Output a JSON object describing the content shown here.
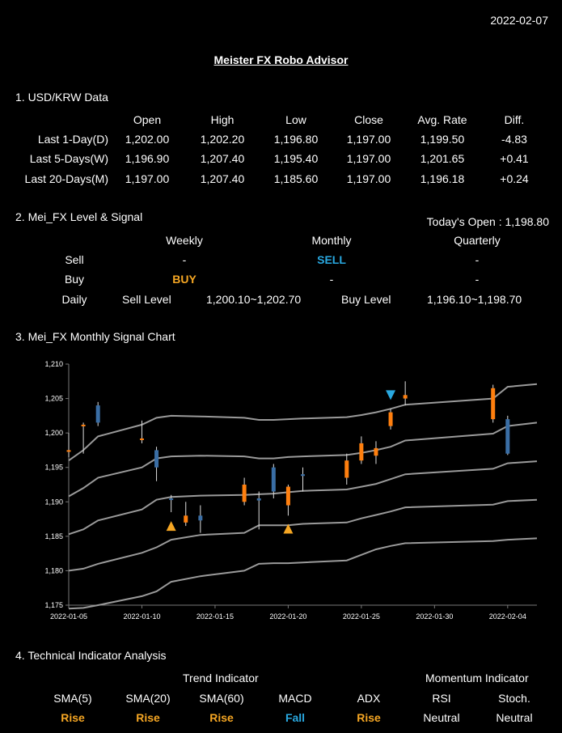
{
  "date": "2022-02-07",
  "title": "Meister FX Robo Advisor",
  "section1": {
    "title": "1. USD/KRW Data",
    "columns": [
      "Open",
      "High",
      "Low",
      "Close",
      "Avg. Rate",
      "Diff."
    ],
    "rows": [
      {
        "label": "Last 1-Day(D)",
        "values": [
          "1,202.00",
          "1,202.20",
          "1,196.80",
          "1,197.00",
          "1,199.50",
          "-4.83"
        ]
      },
      {
        "label": "Last 5-Days(W)",
        "values": [
          "1,196.90",
          "1,207.40",
          "1,195.40",
          "1,197.00",
          "1,201.65",
          "+0.41"
        ]
      },
      {
        "label": "Last 20-Days(M)",
        "values": [
          "1,197.00",
          "1,207.40",
          "1,185.60",
          "1,197.00",
          "1,196.18",
          "+0.24"
        ]
      }
    ]
  },
  "section2": {
    "title": "2. Mei_FX Level & Signal",
    "todays_open": "Today's Open : 1,198.80",
    "headers": [
      "Weekly",
      "Monthly",
      "Quarterly"
    ],
    "sell_label": "Sell",
    "buy_label": "Buy",
    "daily_label": "Daily",
    "sell": [
      "-",
      "SELL",
      "-"
    ],
    "buy": [
      "BUY",
      "-",
      "-"
    ],
    "sell_level_label": "Sell Level",
    "sell_level": "1,200.10~1,202.70",
    "buy_level_label": "Buy Level",
    "buy_level": "1,196.10~1,198.70"
  },
  "section3": {
    "title": "3. Mei_FX Monthly Signal Chart"
  },
  "chart_data": {
    "type": "candlestick",
    "ylim": [
      1175,
      1210
    ],
    "yticks": [
      1175,
      1180,
      1185,
      1190,
      1195,
      1200,
      1205,
      1210
    ],
    "ytick_labels": [
      "1,175",
      "1,180",
      "1,185",
      "1,190",
      "1,195",
      "1,200",
      "1,205",
      "1,210"
    ],
    "xlim": [
      "2022-01-05",
      "2022-02-06"
    ],
    "xticks": [
      "2022-01-05",
      "2022-01-10",
      "2022-01-15",
      "2022-01-20",
      "2022-01-25",
      "2022-01-30",
      "2022-02-04"
    ],
    "up_color": "#ff7f0e",
    "down_color": "#3a6ea5",
    "line_color": "#9a9a9a",
    "candles": [
      {
        "date": "2022-01-05",
        "open": 1197.5,
        "high": 1200.0,
        "low": 1196.5,
        "close": 1197.5
      },
      {
        "date": "2022-01-06",
        "open": 1201.0,
        "high": 1201.5,
        "low": 1197.0,
        "close": 1201.2
      },
      {
        "date": "2022-01-07",
        "open": 1204.0,
        "high": 1204.5,
        "low": 1201.0,
        "close": 1201.5
      },
      {
        "date": "2022-01-10",
        "open": 1199.0,
        "high": 1201.8,
        "low": 1198.5,
        "close": 1199.2
      },
      {
        "date": "2022-01-11",
        "open": 1197.5,
        "high": 1198.0,
        "low": 1193.0,
        "close": 1195.0
      },
      {
        "date": "2022-01-12",
        "open": 1190.5,
        "high": 1191.0,
        "low": 1188.5,
        "close": 1190.3
      },
      {
        "date": "2022-01-13",
        "open": 1187.0,
        "high": 1190.0,
        "low": 1186.5,
        "close": 1188.0
      },
      {
        "date": "2022-01-14",
        "open": 1188.0,
        "high": 1189.5,
        "low": 1185.5,
        "close": 1187.3
      },
      {
        "date": "2022-01-17",
        "open": 1190.0,
        "high": 1193.5,
        "low": 1189.5,
        "close": 1192.5
      },
      {
        "date": "2022-01-18",
        "open": 1190.5,
        "high": 1191.5,
        "low": 1186.0,
        "close": 1190.2
      },
      {
        "date": "2022-01-19",
        "open": 1195.0,
        "high": 1195.5,
        "low": 1190.5,
        "close": 1191.5
      },
      {
        "date": "2022-01-20",
        "open": 1189.5,
        "high": 1192.5,
        "low": 1188.0,
        "close": 1192.2
      },
      {
        "date": "2022-01-21",
        "open": 1194.0,
        "high": 1195.0,
        "low": 1191.5,
        "close": 1193.8
      },
      {
        "date": "2022-01-24",
        "open": 1193.5,
        "high": 1197.0,
        "low": 1192.5,
        "close": 1196.0
      },
      {
        "date": "2022-01-25",
        "open": 1196.0,
        "high": 1199.5,
        "low": 1195.5,
        "close": 1198.5
      },
      {
        "date": "2022-01-26",
        "open": 1196.7,
        "high": 1198.8,
        "low": 1195.5,
        "close": 1197.8
      },
      {
        "date": "2022-01-27",
        "open": 1201.0,
        "high": 1203.5,
        "low": 1200.5,
        "close": 1203.0
      },
      {
        "date": "2022-01-28",
        "open": 1205.0,
        "high": 1207.5,
        "low": 1204.0,
        "close": 1205.5
      },
      {
        "date": "2022-02-03",
        "open": 1202.0,
        "high": 1207.0,
        "low": 1201.5,
        "close": 1206.5
      },
      {
        "date": "2022-02-04",
        "open": 1202.0,
        "high": 1202.5,
        "low": 1196.8,
        "close": 1197.0
      }
    ],
    "bands": [
      [
        [
          "2022-01-05",
          1196.0
        ],
        [
          "2022-01-06",
          1197.5
        ],
        [
          "2022-01-07",
          1199.5
        ],
        [
          "2022-01-10",
          1201.2
        ],
        [
          "2022-01-11",
          1202.2
        ],
        [
          "2022-01-12",
          1202.5
        ],
        [
          "2022-01-14",
          1202.4
        ],
        [
          "2022-01-17",
          1202.2
        ],
        [
          "2022-01-18",
          1201.9
        ],
        [
          "2022-01-19",
          1201.9
        ],
        [
          "2022-01-20",
          1202.0
        ],
        [
          "2022-01-21",
          1202.1
        ],
        [
          "2022-01-24",
          1202.3
        ],
        [
          "2022-01-25",
          1202.6
        ],
        [
          "2022-01-26",
          1203.0
        ],
        [
          "2022-01-27",
          1203.5
        ],
        [
          "2022-01-28",
          1204.1
        ],
        [
          "2022-02-03",
          1205.0
        ],
        [
          "2022-02-04",
          1206.7
        ],
        [
          "2022-02-06",
          1207.1
        ]
      ],
      [
        [
          "2022-01-05",
          1190.8
        ],
        [
          "2022-01-06",
          1192.0
        ],
        [
          "2022-01-07",
          1193.5
        ],
        [
          "2022-01-10",
          1195.0
        ],
        [
          "2022-01-11",
          1196.3
        ],
        [
          "2022-01-12",
          1196.6
        ],
        [
          "2022-01-14",
          1196.7
        ],
        [
          "2022-01-17",
          1196.6
        ],
        [
          "2022-01-18",
          1196.3
        ],
        [
          "2022-01-19",
          1196.3
        ],
        [
          "2022-01-20",
          1196.5
        ],
        [
          "2022-01-21",
          1196.6
        ],
        [
          "2022-01-24",
          1196.8
        ],
        [
          "2022-01-25",
          1197.1
        ],
        [
          "2022-01-26",
          1197.5
        ],
        [
          "2022-01-27",
          1198.0
        ],
        [
          "2022-01-28",
          1198.9
        ],
        [
          "2022-02-03",
          1199.9
        ],
        [
          "2022-02-04",
          1201.0
        ],
        [
          "2022-02-06",
          1201.5
        ]
      ],
      [
        [
          "2022-01-05",
          1185.3
        ],
        [
          "2022-01-06",
          1186.0
        ],
        [
          "2022-01-07",
          1187.3
        ],
        [
          "2022-01-10",
          1188.9
        ],
        [
          "2022-01-11",
          1190.3
        ],
        [
          "2022-01-12",
          1190.7
        ],
        [
          "2022-01-14",
          1190.9
        ],
        [
          "2022-01-17",
          1191.0
        ],
        [
          "2022-01-18",
          1191.1
        ],
        [
          "2022-01-19",
          1191.2
        ],
        [
          "2022-01-20",
          1191.4
        ],
        [
          "2022-01-21",
          1191.6
        ],
        [
          "2022-01-24",
          1191.8
        ],
        [
          "2022-01-25",
          1192.2
        ],
        [
          "2022-01-26",
          1192.6
        ],
        [
          "2022-01-27",
          1193.3
        ],
        [
          "2022-01-28",
          1194.0
        ],
        [
          "2022-02-03",
          1194.8
        ],
        [
          "2022-02-04",
          1195.6
        ],
        [
          "2022-02-06",
          1195.9
        ]
      ],
      [
        [
          "2022-01-05",
          1180.0
        ],
        [
          "2022-01-06",
          1180.3
        ],
        [
          "2022-01-07",
          1181.0
        ],
        [
          "2022-01-10",
          1182.6
        ],
        [
          "2022-01-11",
          1183.4
        ],
        [
          "2022-01-12",
          1184.5
        ],
        [
          "2022-01-14",
          1185.2
        ],
        [
          "2022-01-17",
          1185.5
        ],
        [
          "2022-01-18",
          1186.6
        ],
        [
          "2022-01-19",
          1186.6
        ],
        [
          "2022-01-20",
          1186.6
        ],
        [
          "2022-01-21",
          1186.8
        ],
        [
          "2022-01-24",
          1187.0
        ],
        [
          "2022-01-25",
          1187.6
        ],
        [
          "2022-01-26",
          1188.1
        ],
        [
          "2022-01-27",
          1188.6
        ],
        [
          "2022-01-28",
          1189.2
        ],
        [
          "2022-02-03",
          1189.6
        ],
        [
          "2022-02-04",
          1190.1
        ],
        [
          "2022-02-06",
          1190.3
        ]
      ],
      [
        [
          "2022-01-05",
          1174.5
        ],
        [
          "2022-01-06",
          1174.6
        ],
        [
          "2022-01-07",
          1175.0
        ],
        [
          "2022-01-10",
          1176.3
        ],
        [
          "2022-01-11",
          1177.0
        ],
        [
          "2022-01-12",
          1178.4
        ],
        [
          "2022-01-14",
          1179.2
        ],
        [
          "2022-01-17",
          1180.0
        ],
        [
          "2022-01-18",
          1181.0
        ],
        [
          "2022-01-19",
          1181.1
        ],
        [
          "2022-01-20",
          1181.1
        ],
        [
          "2022-01-21",
          1181.2
        ],
        [
          "2022-01-24",
          1181.5
        ],
        [
          "2022-01-25",
          1182.3
        ],
        [
          "2022-01-26",
          1183.1
        ],
        [
          "2022-01-27",
          1183.6
        ],
        [
          "2022-01-28",
          1184.0
        ],
        [
          "2022-02-03",
          1184.3
        ],
        [
          "2022-02-04",
          1184.5
        ],
        [
          "2022-02-06",
          1184.7
        ]
      ]
    ],
    "markers": [
      {
        "type": "buy",
        "date": "2022-01-12",
        "value": 1186.5,
        "color": "#f5a623"
      },
      {
        "type": "buy",
        "date": "2022-01-20",
        "value": 1186.1,
        "color": "#f5a623"
      },
      {
        "type": "sell",
        "date": "2022-01-27",
        "value": 1205.5,
        "color": "#29a8e0"
      }
    ]
  },
  "section4": {
    "title": "4. Technical Indicator Analysis",
    "trend_label": "Trend Indicator",
    "momentum_label": "Momentum Indicator",
    "indicators": [
      {
        "name": "SMA(5)",
        "value": "Rise",
        "kind": "rise"
      },
      {
        "name": "SMA(20)",
        "value": "Rise",
        "kind": "rise"
      },
      {
        "name": "SMA(60)",
        "value": "Rise",
        "kind": "rise"
      },
      {
        "name": "MACD",
        "value": "Fall",
        "kind": "fall"
      },
      {
        "name": "ADX",
        "value": "Rise",
        "kind": "rise"
      },
      {
        "name": "RSI",
        "value": "Neutral",
        "kind": "neutral"
      },
      {
        "name": "Stoch.",
        "value": "Neutral",
        "kind": "neutral"
      }
    ]
  }
}
